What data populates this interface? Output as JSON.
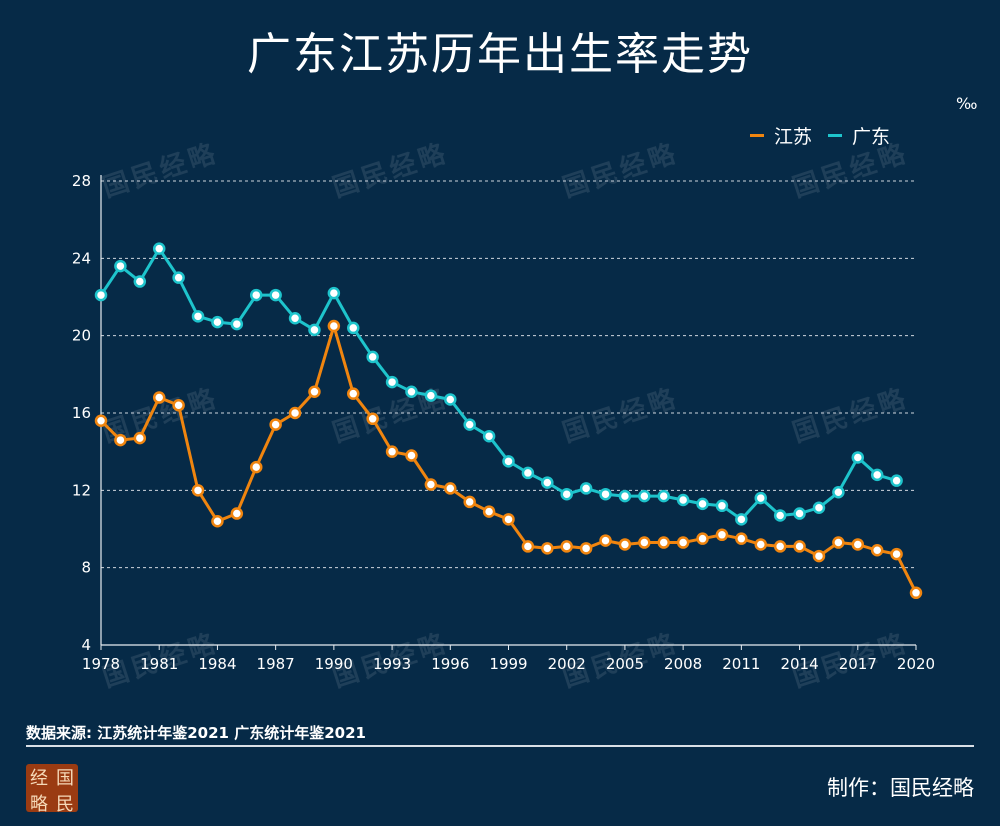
{
  "title": "广东江苏历年出生率走势",
  "unit": "‰",
  "legend": [
    {
      "name": "江苏",
      "color": "#f0850f"
    },
    {
      "name": "广东",
      "color": "#1ec4cc"
    }
  ],
  "watermark": "国民经略",
  "source": "数据来源: 江苏统计年鉴2021 广东统计年鉴2021",
  "maker": "制作：国民经略",
  "seal": [
    "经",
    "国",
    "略",
    "民"
  ],
  "chart_data": {
    "type": "line",
    "title": "广东江苏历年出生率走势",
    "xlabel": "",
    "ylabel": "",
    "ylim": [
      4,
      28
    ],
    "yticks": [
      4,
      8,
      12,
      16,
      20,
      24,
      28
    ],
    "xlim": [
      1978,
      2020
    ],
    "xticks": [
      1978,
      1981,
      1984,
      1987,
      1990,
      1993,
      1996,
      1999,
      2002,
      2005,
      2008,
      2011,
      2014,
      2017,
      2020
    ],
    "grid": true,
    "legend_position": "top-right",
    "series": [
      {
        "name": "江苏",
        "color": "#f0850f",
        "x": [
          1978,
          1979,
          1980,
          1981,
          1982,
          1983,
          1984,
          1985,
          1986,
          1987,
          1988,
          1989,
          1990,
          1991,
          1992,
          1993,
          1994,
          1995,
          1996,
          1997,
          1998,
          1999,
          2000,
          2001,
          2002,
          2003,
          2004,
          2005,
          2006,
          2007,
          2008,
          2009,
          2010,
          2011,
          2012,
          2013,
          2014,
          2015,
          2016,
          2017,
          2018,
          2019,
          2020
        ],
        "values": [
          15.6,
          14.6,
          14.7,
          16.8,
          16.4,
          12.0,
          10.4,
          10.8,
          13.2,
          15.4,
          16.0,
          17.1,
          20.5,
          17.0,
          15.7,
          14.0,
          13.8,
          12.3,
          12.1,
          11.4,
          10.9,
          10.5,
          9.1,
          9.0,
          9.1,
          9.0,
          9.4,
          9.2,
          9.3,
          9.3,
          9.3,
          9.5,
          9.7,
          9.5,
          9.2,
          9.1,
          9.1,
          8.6,
          9.3,
          9.2,
          8.9,
          8.7,
          6.7
        ]
      },
      {
        "name": "广东",
        "color": "#1ec4cc",
        "x": [
          1978,
          1979,
          1980,
          1981,
          1982,
          1983,
          1984,
          1985,
          1986,
          1987,
          1988,
          1989,
          1990,
          1991,
          1992,
          1993,
          1994,
          1995,
          1996,
          1997,
          1998,
          1999,
          2000,
          2001,
          2002,
          2003,
          2004,
          2005,
          2006,
          2007,
          2008,
          2009,
          2010,
          2011,
          2012,
          2013,
          2014,
          2015,
          2016,
          2017,
          2018,
          2019
        ],
        "values": [
          22.1,
          23.6,
          22.8,
          24.5,
          23.0,
          21.0,
          20.7,
          20.6,
          22.1,
          22.1,
          20.9,
          20.3,
          22.2,
          20.4,
          18.9,
          17.6,
          17.1,
          16.9,
          16.7,
          15.4,
          14.8,
          13.5,
          12.9,
          12.4,
          11.8,
          12.1,
          11.8,
          11.7,
          11.7,
          11.7,
          11.5,
          11.3,
          11.2,
          10.5,
          11.6,
          10.7,
          10.8,
          11.1,
          11.9,
          13.7,
          12.8,
          12.5
        ]
      }
    ]
  }
}
